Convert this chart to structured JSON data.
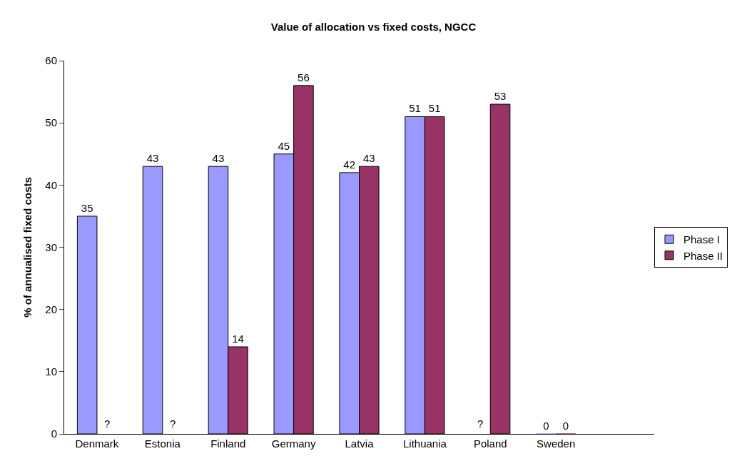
{
  "chart_data": {
    "type": "bar",
    "title": "Value of allocation vs fixed costs, NGCC",
    "ylabel": "% of annualised fixed costs",
    "categories": [
      "Denmark",
      "Estonia",
      "Finland",
      "Germany",
      "Latvia",
      "Lithuania",
      "Poland",
      "Sweden",
      null
    ],
    "series": [
      {
        "name": "Phase I",
        "color": "#9999ff",
        "values": [
          35,
          43,
          43,
          45,
          42,
          51,
          null,
          0,
          null
        ],
        "value_labels": [
          "35",
          "43",
          "43",
          "45",
          "42",
          "51",
          "?",
          "0",
          null
        ]
      },
      {
        "name": "Phase II",
        "color": "#993366",
        "values": [
          null,
          null,
          14,
          56,
          43,
          51,
          53,
          0,
          null
        ],
        "value_labels": [
          "?",
          "?",
          "14",
          "56",
          "43",
          "51",
          "53",
          "0",
          null
        ]
      }
    ],
    "ylim": [
      0,
      60
    ],
    "yticks": [
      0,
      10,
      20,
      30,
      40,
      50,
      60
    ],
    "legend": "right"
  }
}
